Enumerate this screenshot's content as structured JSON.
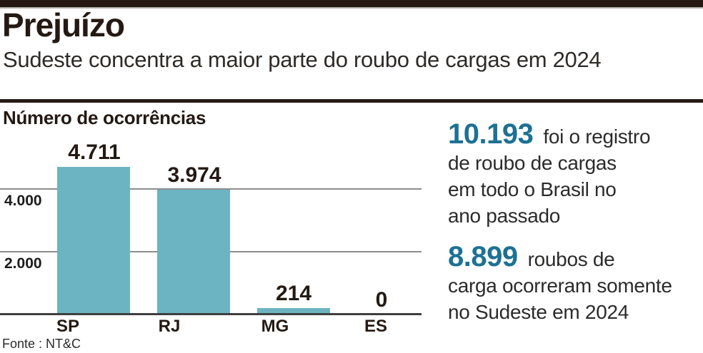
{
  "page": {
    "title": "Prejuízo",
    "subtitle": "Sudeste concentra a maior parte do roubo de cargas em 2024",
    "source": "Fonte : NT&C"
  },
  "chart_data": {
    "type": "bar",
    "title": "Número de ocorrências",
    "categories": [
      "SP",
      "RJ",
      "MG",
      "ES"
    ],
    "values": [
      4711,
      3974,
      214,
      0
    ],
    "value_labels": [
      "4.711",
      "3.974",
      "214",
      "0"
    ],
    "yticks": [
      {
        "value": 4000,
        "label": "4.000"
      },
      {
        "value": 2000,
        "label": "2.000"
      }
    ],
    "ylim": [
      0,
      5000
    ],
    "xlabel": "",
    "ylabel": "Número de ocorrências",
    "grid": true,
    "legend": false,
    "bar_color": "#6cb4c1",
    "source": "Fonte : NT&C"
  },
  "callouts": [
    {
      "number": "10.193",
      "text": "foi o registro\nde roubo de cargas\nem todo o Brasil no\nano passado"
    },
    {
      "number": "8.899",
      "text": "roubos de\ncarga ocorreram somente\nno Sudeste em 2024"
    }
  ],
  "colors": {
    "accent_blue": "#1d7194",
    "bar_teal": "#6cb4c1",
    "ink": "#241a13"
  }
}
